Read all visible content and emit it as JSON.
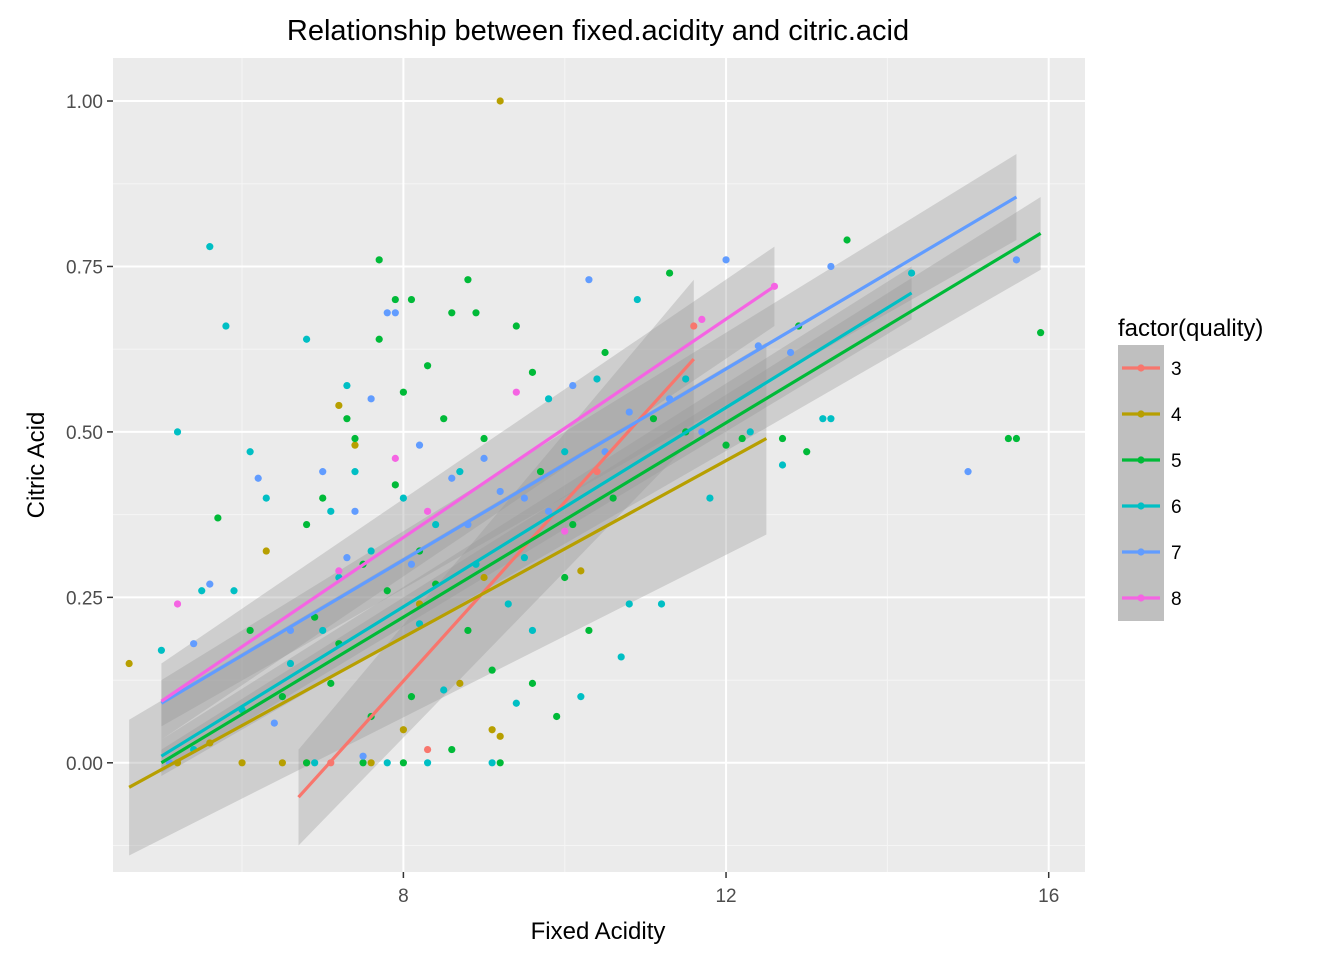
{
  "chart_data": {
    "type": "scatter",
    "title": "Relationship between fixed.acidity and citric.acid",
    "xlabel": "Fixed Acidity",
    "ylabel": "Citric Acid",
    "xlim": [
      4.4,
      16.45
    ],
    "ylim": [
      -0.165,
      1.065
    ],
    "x_ticks": [
      8,
      12,
      16
    ],
    "y_ticks": [
      0.0,
      0.25,
      0.5,
      0.75,
      1.0
    ],
    "y_tick_labels": [
      "0.00",
      "0.25",
      "0.50",
      "0.75",
      "1.00"
    ],
    "grid": true,
    "legend": {
      "title": "factor(quality)",
      "position": "right"
    },
    "series": [
      {
        "name": "3",
        "color": "#F8766D",
        "fit": {
          "x0": 6.7,
          "y0": -0.052,
          "x1": 11.6,
          "y1": 0.61
        },
        "band": {
          "lo0": -0.125,
          "hi0": 0.02,
          "lo1": 0.49,
          "hi1": 0.73
        },
        "points": [
          [
            7.1,
            0.0
          ],
          [
            8.3,
            0.02
          ],
          [
            10.4,
            0.44
          ],
          [
            11.6,
            0.66
          ]
        ]
      },
      {
        "name": "4",
        "color": "#B79F00",
        "fit": {
          "x0": 4.6,
          "y0": -0.037,
          "x1": 12.5,
          "y1": 0.49
        },
        "band": {
          "lo0": -0.14,
          "hi0": 0.065,
          "lo1": 0.345,
          "hi1": 0.635
        },
        "points": [
          [
            4.6,
            0.15
          ],
          [
            9.2,
            1.0
          ],
          [
            6.8,
            0.0
          ],
          [
            7.2,
            0.54
          ],
          [
            6.3,
            0.32
          ],
          [
            7.4,
            0.48
          ],
          [
            8.0,
            0.05
          ],
          [
            9.1,
            0.05
          ],
          [
            9.2,
            0.04
          ],
          [
            7.6,
            0.0
          ],
          [
            8.2,
            0.24
          ],
          [
            8.7,
            0.12
          ],
          [
            5.2,
            0.0
          ],
          [
            5.6,
            0.03
          ],
          [
            6.0,
            0.0
          ],
          [
            6.5,
            0.0
          ],
          [
            10.2,
            0.29
          ],
          [
            9.0,
            0.28
          ]
        ]
      },
      {
        "name": "5",
        "color": "#00BA38",
        "fit": {
          "x0": 5.0,
          "y0": 0.0,
          "x1": 15.9,
          "y1": 0.8
        },
        "band": {
          "lo0": -0.02,
          "hi0": 0.02,
          "lo1": 0.745,
          "hi1": 0.855
        },
        "points": [
          [
            7.7,
            0.76
          ],
          [
            7.9,
            0.7
          ],
          [
            8.1,
            0.7
          ],
          [
            8.0,
            0.56
          ],
          [
            8.6,
            0.68
          ],
          [
            8.9,
            0.68
          ],
          [
            9.4,
            0.66
          ],
          [
            7.4,
            0.49
          ],
          [
            7.9,
            0.42
          ],
          [
            8.3,
            0.6
          ],
          [
            8.5,
            0.52
          ],
          [
            6.8,
            0.36
          ],
          [
            7.0,
            0.4
          ],
          [
            7.5,
            0.3
          ],
          [
            7.8,
            0.26
          ],
          [
            8.2,
            0.32
          ],
          [
            8.8,
            0.2
          ],
          [
            9.1,
            0.14
          ],
          [
            9.6,
            0.12
          ],
          [
            9.9,
            0.07
          ],
          [
            7.2,
            0.18
          ],
          [
            6.5,
            0.1
          ],
          [
            6.8,
            0.0
          ],
          [
            7.5,
            0.0
          ],
          [
            8.0,
            0.0
          ],
          [
            8.6,
            0.02
          ],
          [
            9.2,
            0.0
          ],
          [
            5.7,
            0.37
          ],
          [
            6.1,
            0.2
          ],
          [
            10.1,
            0.36
          ],
          [
            10.6,
            0.4
          ],
          [
            11.1,
            0.52
          ],
          [
            11.5,
            0.5
          ],
          [
            12.0,
            0.48
          ],
          [
            12.2,
            0.49
          ],
          [
            12.7,
            0.49
          ],
          [
            13.0,
            0.47
          ],
          [
            13.5,
            0.79
          ],
          [
            12.9,
            0.66
          ],
          [
            15.5,
            0.49
          ],
          [
            15.6,
            0.49
          ],
          [
            15.9,
            0.65
          ],
          [
            11.3,
            0.74
          ],
          [
            9.6,
            0.59
          ],
          [
            8.8,
            0.73
          ],
          [
            10.5,
            0.62
          ],
          [
            9.0,
            0.49
          ],
          [
            7.3,
            0.52
          ],
          [
            7.7,
            0.64
          ],
          [
            10.0,
            0.28
          ],
          [
            10.3,
            0.2
          ],
          [
            9.7,
            0.44
          ],
          [
            8.4,
            0.27
          ],
          [
            6.9,
            0.22
          ],
          [
            7.1,
            0.12
          ],
          [
            7.6,
            0.07
          ],
          [
            8.1,
            0.1
          ]
        ]
      },
      {
        "name": "6",
        "color": "#00BFC4",
        "fit": {
          "x0": 5.0,
          "y0": 0.01,
          "x1": 14.3,
          "y1": 0.71
        },
        "band": {
          "lo0": -0.015,
          "hi0": 0.035,
          "lo1": 0.67,
          "hi1": 0.75
        },
        "points": [
          [
            5.2,
            0.5
          ],
          [
            5.0,
            0.17
          ],
          [
            5.5,
            0.26
          ],
          [
            5.6,
            0.78
          ],
          [
            5.9,
            0.26
          ],
          [
            5.8,
            0.66
          ],
          [
            6.1,
            0.47
          ],
          [
            6.3,
            0.4
          ],
          [
            6.8,
            0.64
          ],
          [
            7.1,
            0.38
          ],
          [
            7.3,
            0.57
          ],
          [
            7.6,
            0.32
          ],
          [
            8.0,
            0.4
          ],
          [
            8.4,
            0.36
          ],
          [
            8.9,
            0.3
          ],
          [
            9.3,
            0.24
          ],
          [
            9.6,
            0.2
          ],
          [
            10.0,
            0.47
          ],
          [
            10.4,
            0.58
          ],
          [
            10.8,
            0.24
          ],
          [
            11.2,
            0.24
          ],
          [
            11.8,
            0.4
          ],
          [
            12.3,
            0.5
          ],
          [
            12.7,
            0.45
          ],
          [
            13.2,
            0.52
          ],
          [
            13.3,
            0.52
          ],
          [
            14.3,
            0.74
          ],
          [
            10.7,
            0.16
          ],
          [
            8.3,
            0.0
          ],
          [
            9.1,
            0.0
          ],
          [
            6.9,
            0.0
          ],
          [
            7.8,
            0.0
          ],
          [
            5.4,
            0.02
          ],
          [
            6.0,
            0.08
          ],
          [
            7.0,
            0.2
          ],
          [
            7.4,
            0.44
          ],
          [
            8.7,
            0.44
          ],
          [
            9.5,
            0.31
          ],
          [
            10.9,
            0.7
          ],
          [
            11.5,
            0.58
          ],
          [
            9.8,
            0.55
          ],
          [
            8.2,
            0.21
          ],
          [
            7.2,
            0.28
          ],
          [
            6.6,
            0.15
          ],
          [
            10.2,
            0.1
          ],
          [
            9.4,
            0.09
          ],
          [
            8.5,
            0.11
          ]
        ]
      },
      {
        "name": "7",
        "color": "#619CFF",
        "fit": {
          "x0": 5.0,
          "y0": 0.09,
          "x1": 15.6,
          "y1": 0.855
        },
        "band": {
          "lo0": 0.055,
          "hi0": 0.125,
          "lo1": 0.79,
          "hi1": 0.92
        },
        "points": [
          [
            5.1,
            0.0
          ],
          [
            5.4,
            0.18
          ],
          [
            5.6,
            0.27
          ],
          [
            6.2,
            0.43
          ],
          [
            6.6,
            0.2
          ],
          [
            7.0,
            0.44
          ],
          [
            7.4,
            0.38
          ],
          [
            7.6,
            0.55
          ],
          [
            7.8,
            0.68
          ],
          [
            7.9,
            0.68
          ],
          [
            8.2,
            0.48
          ],
          [
            8.6,
            0.43
          ],
          [
            9.0,
            0.46
          ],
          [
            9.5,
            0.4
          ],
          [
            10.3,
            0.73
          ],
          [
            10.8,
            0.53
          ],
          [
            11.3,
            0.55
          ],
          [
            12.0,
            0.76
          ],
          [
            13.3,
            0.75
          ],
          [
            15.0,
            0.44
          ],
          [
            15.6,
            0.76
          ],
          [
            12.4,
            0.63
          ],
          [
            12.8,
            0.62
          ],
          [
            11.7,
            0.5
          ],
          [
            10.5,
            0.47
          ],
          [
            9.8,
            0.38
          ],
          [
            8.8,
            0.36
          ],
          [
            7.3,
            0.31
          ],
          [
            6.4,
            0.06
          ],
          [
            7.5,
            0.01
          ],
          [
            8.1,
            0.3
          ],
          [
            9.2,
            0.41
          ],
          [
            10.1,
            0.57
          ]
        ]
      },
      {
        "name": "8",
        "color": "#F564E3",
        "fit": {
          "x0": 5.0,
          "y0": 0.093,
          "x1": 12.6,
          "y1": 0.72
        },
        "band": {
          "lo0": 0.035,
          "hi0": 0.15,
          "lo1": 0.66,
          "hi1": 0.78
        },
        "points": [
          [
            5.2,
            0.24
          ],
          [
            7.9,
            0.46
          ],
          [
            9.4,
            0.56
          ],
          [
            12.6,
            0.72
          ],
          [
            10.0,
            0.35
          ],
          [
            11.7,
            0.67
          ],
          [
            8.3,
            0.38
          ],
          [
            7.2,
            0.29
          ]
        ]
      }
    ]
  }
}
